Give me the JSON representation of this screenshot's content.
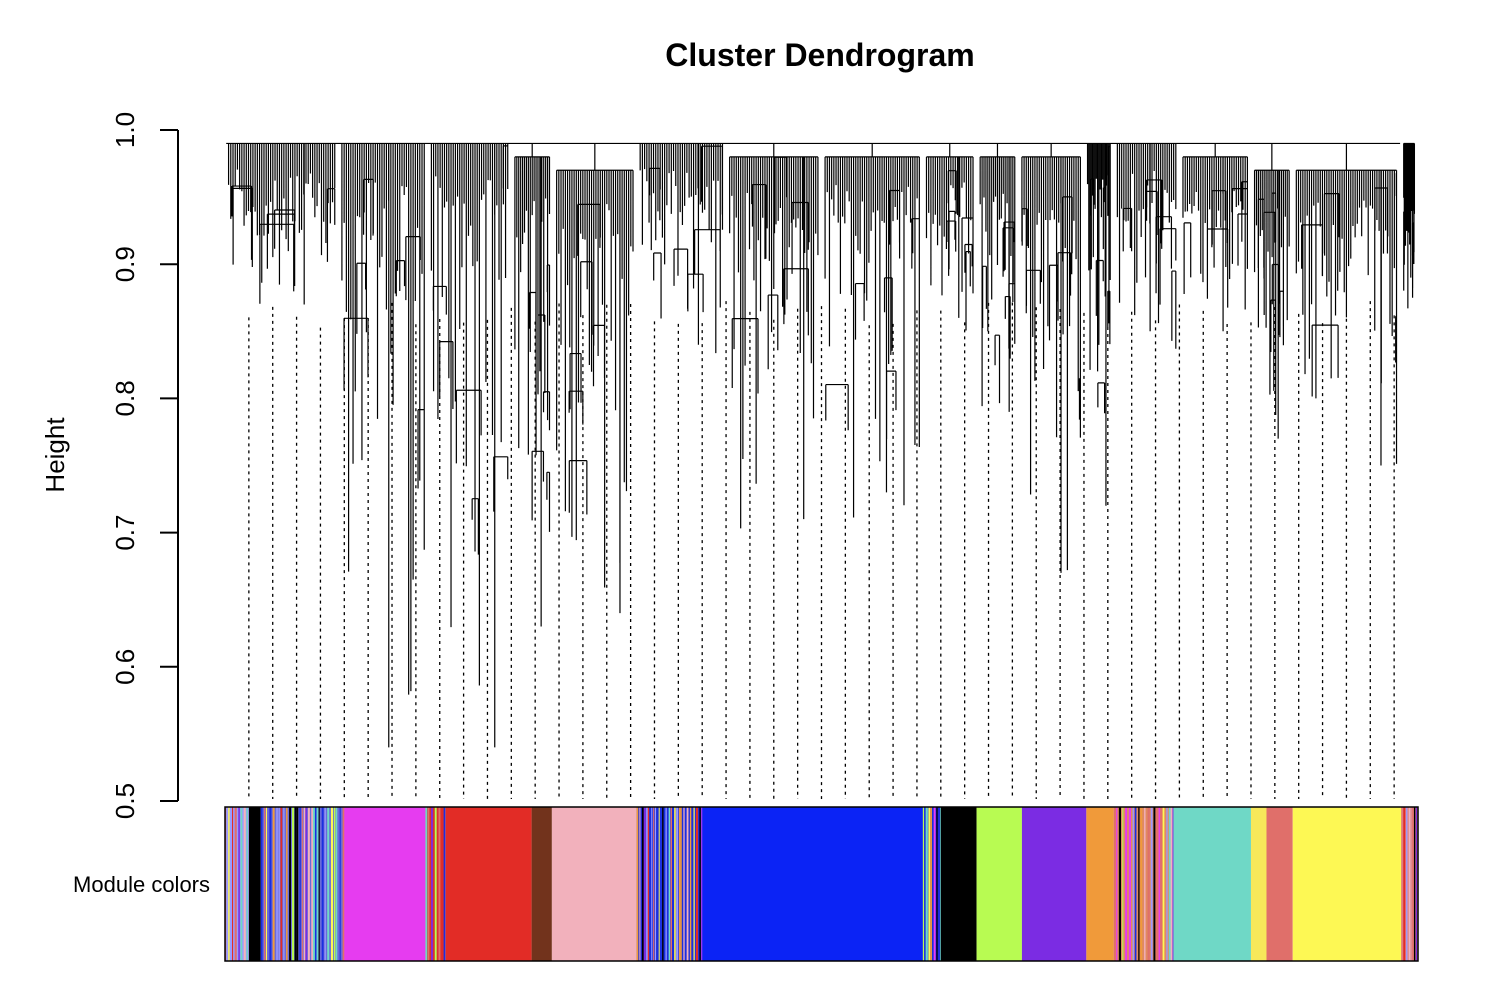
{
  "chart_data": {
    "type": "dendrogram",
    "title": "Cluster Dendrogram",
    "xlabel": "",
    "ylabel": "Height",
    "ylim": [
      0.5,
      1.0
    ],
    "yticks": [
      0.5,
      0.6,
      0.7,
      0.8,
      0.9,
      1.0
    ],
    "ytick_labels": [
      "0.5",
      "0.6",
      "0.7",
      "0.8",
      "0.9",
      "1.0"
    ],
    "color_bar_label": "Module colors",
    "merge_height": 0.99,
    "branches": [
      {
        "x0": 0.0,
        "x1": 0.095,
        "base": 0.99,
        "min": 0.87,
        "module": "mixed"
      },
      {
        "x0": 0.095,
        "x1": 0.17,
        "base": 0.99,
        "min": 0.54,
        "module": "magenta"
      },
      {
        "x0": 0.17,
        "x1": 0.24,
        "base": 0.99,
        "min": 0.54,
        "module": "red"
      },
      {
        "x0": 0.24,
        "x1": 0.275,
        "base": 0.98,
        "min": 0.63,
        "module": "brown"
      },
      {
        "x0": 0.275,
        "x1": 0.345,
        "base": 0.97,
        "min": 0.64,
        "module": "pink"
      },
      {
        "x0": 0.345,
        "x1": 0.42,
        "base": 0.99,
        "min": 0.84,
        "module": "mixed-blue"
      },
      {
        "x0": 0.42,
        "x1": 0.5,
        "base": 0.98,
        "min": 0.71,
        "module": "blue"
      },
      {
        "x0": 0.5,
        "x1": 0.585,
        "base": 0.98,
        "min": 0.73,
        "module": "blue"
      },
      {
        "x0": 0.585,
        "x1": 0.63,
        "base": 0.98,
        "min": 0.86,
        "module": "black"
      },
      {
        "x0": 0.63,
        "x1": 0.665,
        "base": 0.98,
        "min": 0.79,
        "module": "greenyellow"
      },
      {
        "x0": 0.665,
        "x1": 0.72,
        "base": 0.98,
        "min": 0.67,
        "module": "purple"
      },
      {
        "x0": 0.72,
        "x1": 0.745,
        "base": 0.99,
        "min": 0.72,
        "module": "orange"
      },
      {
        "x0": 0.745,
        "x1": 0.8,
        "base": 0.99,
        "min": 0.85,
        "module": "mixed"
      },
      {
        "x0": 0.8,
        "x1": 0.86,
        "base": 0.98,
        "min": 0.85,
        "module": "turquoise"
      },
      {
        "x0": 0.86,
        "x1": 0.895,
        "base": 0.97,
        "min": 0.77,
        "module": "salmon"
      },
      {
        "x0": 0.895,
        "x1": 0.985,
        "base": 0.97,
        "min": 0.75,
        "module": "yellow"
      },
      {
        "x0": 0.985,
        "x1": 1.0,
        "base": 0.99,
        "min": 0.89,
        "module": "mixed"
      }
    ],
    "module_segments": [
      {
        "x0": 0.0,
        "x1": 0.02,
        "color": "#9a9aff",
        "stripes": true
      },
      {
        "x0": 0.02,
        "x1": 0.03,
        "color": "#000000"
      },
      {
        "x0": 0.03,
        "x1": 0.1,
        "color": "#6a6ad8",
        "stripes": true
      },
      {
        "x0": 0.1,
        "x1": 0.168,
        "color": "#e63cf0"
      },
      {
        "x0": 0.168,
        "x1": 0.185,
        "color": "#d8342c",
        "stripes": true
      },
      {
        "x0": 0.185,
        "x1": 0.257,
        "color": "#e22c26"
      },
      {
        "x0": 0.257,
        "x1": 0.274,
        "color": "#72331c"
      },
      {
        "x0": 0.274,
        "x1": 0.345,
        "color": "#f2b1bc"
      },
      {
        "x0": 0.345,
        "x1": 0.4,
        "color": "#1a2ee0",
        "stripes": true
      },
      {
        "x0": 0.4,
        "x1": 0.585,
        "color": "#0b23f5"
      },
      {
        "x0": 0.585,
        "x1": 0.6,
        "color": "#1a2ee0",
        "stripes": true
      },
      {
        "x0": 0.6,
        "x1": 0.63,
        "color": "#000000"
      },
      {
        "x0": 0.63,
        "x1": 0.668,
        "color": "#b8fb52"
      },
      {
        "x0": 0.668,
        "x1": 0.722,
        "color": "#7b2ce3"
      },
      {
        "x0": 0.722,
        "x1": 0.745,
        "color": "#f09a3a"
      },
      {
        "x0": 0.745,
        "x1": 0.795,
        "color": "#e08a60",
        "stripes": true
      },
      {
        "x0": 0.795,
        "x1": 0.86,
        "color": "#6fd8c6"
      },
      {
        "x0": 0.86,
        "x1": 0.873,
        "color": "#f7e85a"
      },
      {
        "x0": 0.873,
        "x1": 0.895,
        "color": "#e06f6a"
      },
      {
        "x0": 0.895,
        "x1": 0.986,
        "color": "#fdf854"
      },
      {
        "x0": 0.986,
        "x1": 1.0,
        "color": "#e08a90",
        "stripes": true
      }
    ]
  }
}
